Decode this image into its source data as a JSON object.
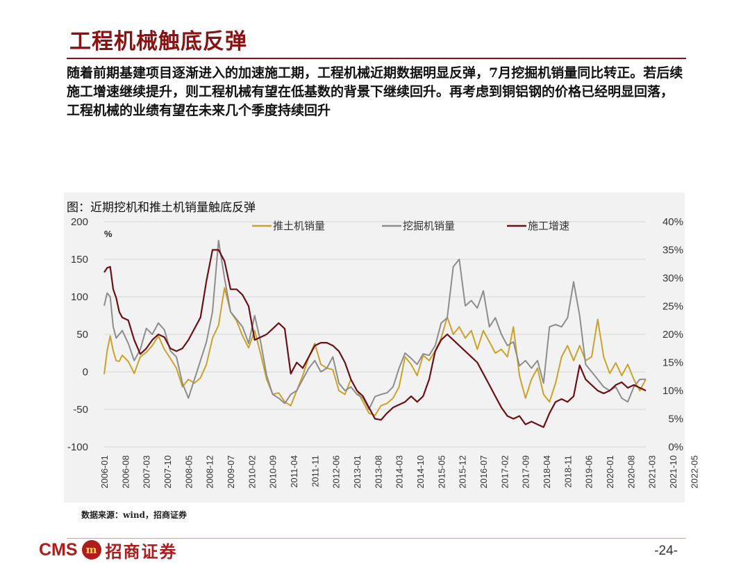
{
  "slide": {
    "title": "工程机械触底反弹",
    "body": "随着前期基建项目逐渐进入的加速施工期，工程机械近期数据明显反弹，7月挖掘机销量同比转正。若后续施工增速继续提升，则工程机械有望在低基数的背景下继续回升。再考虑到铜铝钢的价格已经明显回落，工程机械的业绩有望在未来几个季度持续回升",
    "chart_caption": "图：近期挖机和推土机销量触底反弹",
    "source": "数据来源：wind，招商证券",
    "page_number": "-24-",
    "logo_text": "CMS",
    "logo_emblem": "m",
    "logo_cn": "招商证券"
  },
  "colors": {
    "title": "#8b1212",
    "dozer": "#c9a227",
    "excavator": "#8c8c8c",
    "construction": "#6b0f14"
  },
  "chart_data": {
    "type": "line",
    "left_unit": "%",
    "left_axis": {
      "min": -100,
      "max": 200,
      "ticks": [
        200,
        150,
        100,
        50,
        0,
        -50,
        -100
      ]
    },
    "right_axis": {
      "min": 0,
      "max": 40,
      "ticks": [
        "40%",
        "35%",
        "30%",
        "25%",
        "20%",
        "15%",
        "10%",
        "5%",
        "0%"
      ]
    },
    "x_labels": [
      "2006-01",
      "2006-08",
      "2007-03",
      "2007-10",
      "2008-05",
      "2008-12",
      "2009-07",
      "2010-02",
      "2010-09",
      "2011-04",
      "2011-11",
      "2012-06",
      "2013-01",
      "2013-08",
      "2014-03",
      "2014-10",
      "2015-05",
      "2015-12",
      "2016-07",
      "2017-02",
      "2017-09",
      "2018-04",
      "2018-11",
      "2019-06",
      "2020-01",
      "2020-08",
      "2021-03",
      "2021-10",
      "2022-05"
    ],
    "legend_position": "top",
    "series": [
      {
        "name": "推土机销量",
        "axis": "left",
        "points": [
          [
            0,
            -3
          ],
          [
            1,
            28
          ],
          [
            2,
            48
          ],
          [
            3,
            28
          ],
          [
            4,
            15
          ],
          [
            5,
            14
          ],
          [
            6,
            22
          ],
          [
            8,
            14
          ],
          [
            10,
            -2
          ],
          [
            12,
            20
          ],
          [
            14,
            26
          ],
          [
            16,
            35
          ],
          [
            18,
            48
          ],
          [
            20,
            30
          ],
          [
            22,
            18
          ],
          [
            24,
            5
          ],
          [
            26,
            -20
          ],
          [
            28,
            -10
          ],
          [
            30,
            -15
          ],
          [
            32,
            -8
          ],
          [
            34,
            10
          ],
          [
            36,
            45
          ],
          [
            38,
            62
          ],
          [
            40,
            112
          ],
          [
            42,
            80
          ],
          [
            44,
            68
          ],
          [
            46,
            48
          ],
          [
            48,
            32
          ],
          [
            50,
            55
          ],
          [
            52,
            24
          ],
          [
            54,
            -10
          ],
          [
            56,
            -30
          ],
          [
            58,
            -28
          ],
          [
            60,
            -40
          ],
          [
            62,
            -45
          ],
          [
            64,
            -25
          ],
          [
            66,
            -5
          ],
          [
            68,
            20
          ],
          [
            70,
            38
          ],
          [
            72,
            10
          ],
          [
            74,
            5
          ],
          [
            76,
            3
          ],
          [
            78,
            -25
          ],
          [
            80,
            -30
          ],
          [
            82,
            -10
          ],
          [
            84,
            -25
          ],
          [
            86,
            -40
          ],
          [
            88,
            -55
          ],
          [
            90,
            -58
          ],
          [
            92,
            -45
          ],
          [
            94,
            -42
          ],
          [
            96,
            -35
          ],
          [
            98,
            -20
          ],
          [
            100,
            20
          ],
          [
            102,
            10
          ],
          [
            104,
            -5
          ],
          [
            106,
            22
          ],
          [
            108,
            15
          ],
          [
            110,
            28
          ],
          [
            112,
            45
          ],
          [
            114,
            73
          ],
          [
            116,
            50
          ],
          [
            118,
            60
          ],
          [
            120,
            45
          ],
          [
            122,
            55
          ],
          [
            124,
            30
          ],
          [
            126,
            55
          ],
          [
            128,
            40
          ],
          [
            130,
            25
          ],
          [
            132,
            30
          ],
          [
            134,
            20
          ],
          [
            136,
            60
          ],
          [
            138,
            -5
          ],
          [
            140,
            -35
          ],
          [
            142,
            -10
          ],
          [
            144,
            5
          ],
          [
            146,
            -30
          ],
          [
            148,
            -40
          ],
          [
            150,
            -15
          ],
          [
            152,
            20
          ],
          [
            154,
            35
          ],
          [
            156,
            15
          ],
          [
            158,
            35
          ],
          [
            160,
            15
          ],
          [
            162,
            20
          ],
          [
            164,
            70
          ],
          [
            166,
            20
          ],
          [
            168,
            -2
          ],
          [
            170,
            12
          ],
          [
            172,
            -5
          ],
          [
            174,
            10
          ],
          [
            176,
            -10
          ],
          [
            178,
            -25
          ],
          [
            180,
            -10
          ]
        ]
      },
      {
        "name": "挖掘机销量",
        "axis": "left",
        "points": [
          [
            0,
            88
          ],
          [
            1,
            105
          ],
          [
            2,
            100
          ],
          [
            3,
            60
          ],
          [
            4,
            45
          ],
          [
            5,
            50
          ],
          [
            6,
            55
          ],
          [
            8,
            38
          ],
          [
            10,
            15
          ],
          [
            12,
            30
          ],
          [
            14,
            58
          ],
          [
            16,
            50
          ],
          [
            18,
            65
          ],
          [
            20,
            56
          ],
          [
            22,
            28
          ],
          [
            24,
            20
          ],
          [
            26,
            -15
          ],
          [
            28,
            -35
          ],
          [
            30,
            -10
          ],
          [
            32,
            15
          ],
          [
            34,
            40
          ],
          [
            36,
            80
          ],
          [
            38,
            175
          ],
          [
            40,
            125
          ],
          [
            42,
            80
          ],
          [
            44,
            70
          ],
          [
            46,
            60
          ],
          [
            48,
            38
          ],
          [
            50,
            75
          ],
          [
            52,
            40
          ],
          [
            54,
            -5
          ],
          [
            56,
            -30
          ],
          [
            58,
            -35
          ],
          [
            60,
            -42
          ],
          [
            62,
            -30
          ],
          [
            64,
            -25
          ],
          [
            66,
            -10
          ],
          [
            68,
            5
          ],
          [
            70,
            15
          ],
          [
            72,
            0
          ],
          [
            74,
            5
          ],
          [
            76,
            20
          ],
          [
            78,
            -15
          ],
          [
            80,
            -25
          ],
          [
            82,
            -20
          ],
          [
            84,
            -30
          ],
          [
            86,
            -35
          ],
          [
            88,
            -50
          ],
          [
            90,
            -33
          ],
          [
            92,
            -30
          ],
          [
            94,
            -28
          ],
          [
            96,
            -20
          ],
          [
            98,
            5
          ],
          [
            100,
            25
          ],
          [
            102,
            18
          ],
          [
            104,
            10
          ],
          [
            106,
            24
          ],
          [
            108,
            22
          ],
          [
            110,
            35
          ],
          [
            112,
            65
          ],
          [
            114,
            72
          ],
          [
            116,
            140
          ],
          [
            118,
            150
          ],
          [
            120,
            88
          ],
          [
            122,
            95
          ],
          [
            124,
            85
          ],
          [
            126,
            108
          ],
          [
            128,
            60
          ],
          [
            130,
            72
          ],
          [
            132,
            50
          ],
          [
            134,
            35
          ],
          [
            136,
            40
          ],
          [
            138,
            8
          ],
          [
            140,
            15
          ],
          [
            142,
            5
          ],
          [
            144,
            15
          ],
          [
            146,
            -15
          ],
          [
            148,
            60
          ],
          [
            150,
            63
          ],
          [
            152,
            60
          ],
          [
            154,
            72
          ],
          [
            156,
            120
          ],
          [
            158,
            75
          ],
          [
            160,
            10
          ],
          [
            162,
            0
          ],
          [
            164,
            -10
          ],
          [
            166,
            -20
          ],
          [
            168,
            -25
          ],
          [
            170,
            -20
          ],
          [
            172,
            -35
          ],
          [
            174,
            -40
          ],
          [
            176,
            -20
          ],
          [
            178,
            -10
          ],
          [
            180,
            -10
          ]
        ]
      },
      {
        "name": "施工增速",
        "axis": "right",
        "points": [
          [
            0,
            31
          ],
          [
            1,
            31.8
          ],
          [
            2,
            32
          ],
          [
            3,
            28
          ],
          [
            4,
            26.5
          ],
          [
            5,
            24
          ],
          [
            6,
            23
          ],
          [
            8,
            22.5
          ],
          [
            10,
            19
          ],
          [
            12,
            16.5
          ],
          [
            14,
            17.5
          ],
          [
            16,
            19
          ],
          [
            18,
            20
          ],
          [
            20,
            19.5
          ],
          [
            22,
            17.5
          ],
          [
            24,
            17
          ],
          [
            26,
            17.5
          ],
          [
            28,
            19
          ],
          [
            30,
            21
          ],
          [
            32,
            23
          ],
          [
            34,
            29.5
          ],
          [
            36,
            35
          ],
          [
            38,
            35
          ],
          [
            40,
            33
          ],
          [
            42,
            28
          ],
          [
            44,
            28
          ],
          [
            46,
            27
          ],
          [
            48,
            25
          ],
          [
            50,
            19
          ],
          [
            52,
            19.5
          ],
          [
            54,
            20
          ],
          [
            56,
            21
          ],
          [
            58,
            22
          ],
          [
            60,
            21
          ],
          [
            62,
            13
          ],
          [
            64,
            15
          ],
          [
            66,
            14
          ],
          [
            68,
            16
          ],
          [
            70,
            18
          ],
          [
            72,
            18.5
          ],
          [
            74,
            18.5
          ],
          [
            76,
            18
          ],
          [
            78,
            17
          ],
          [
            80,
            15
          ],
          [
            82,
            12
          ],
          [
            84,
            10
          ],
          [
            86,
            9
          ],
          [
            88,
            7
          ],
          [
            90,
            5
          ],
          [
            92,
            4.8
          ],
          [
            94,
            6
          ],
          [
            96,
            7
          ],
          [
            98,
            7.5
          ],
          [
            100,
            8
          ],
          [
            102,
            9
          ],
          [
            104,
            8
          ],
          [
            106,
            9
          ],
          [
            108,
            12
          ],
          [
            110,
            17
          ],
          [
            112,
            19
          ],
          [
            114,
            20
          ],
          [
            116,
            19
          ],
          [
            118,
            18
          ],
          [
            120,
            17
          ],
          [
            122,
            16
          ],
          [
            124,
            15
          ],
          [
            126,
            13
          ],
          [
            128,
            11
          ],
          [
            130,
            9
          ],
          [
            132,
            7
          ],
          [
            134,
            5.5
          ],
          [
            136,
            5
          ],
          [
            138,
            5.5
          ],
          [
            140,
            4
          ],
          [
            142,
            4.5
          ],
          [
            144,
            4
          ],
          [
            146,
            3.5
          ],
          [
            148,
            6
          ],
          [
            150,
            8
          ],
          [
            152,
            8.5
          ],
          [
            154,
            8
          ],
          [
            156,
            9
          ],
          [
            158,
            14.5
          ],
          [
            160,
            12
          ],
          [
            162,
            11
          ],
          [
            164,
            10
          ],
          [
            166,
            9.5
          ],
          [
            168,
            10
          ],
          [
            170,
            11
          ],
          [
            172,
            11.5
          ],
          [
            174,
            10.5
          ],
          [
            176,
            11
          ],
          [
            180,
            10
          ]
        ]
      }
    ]
  }
}
